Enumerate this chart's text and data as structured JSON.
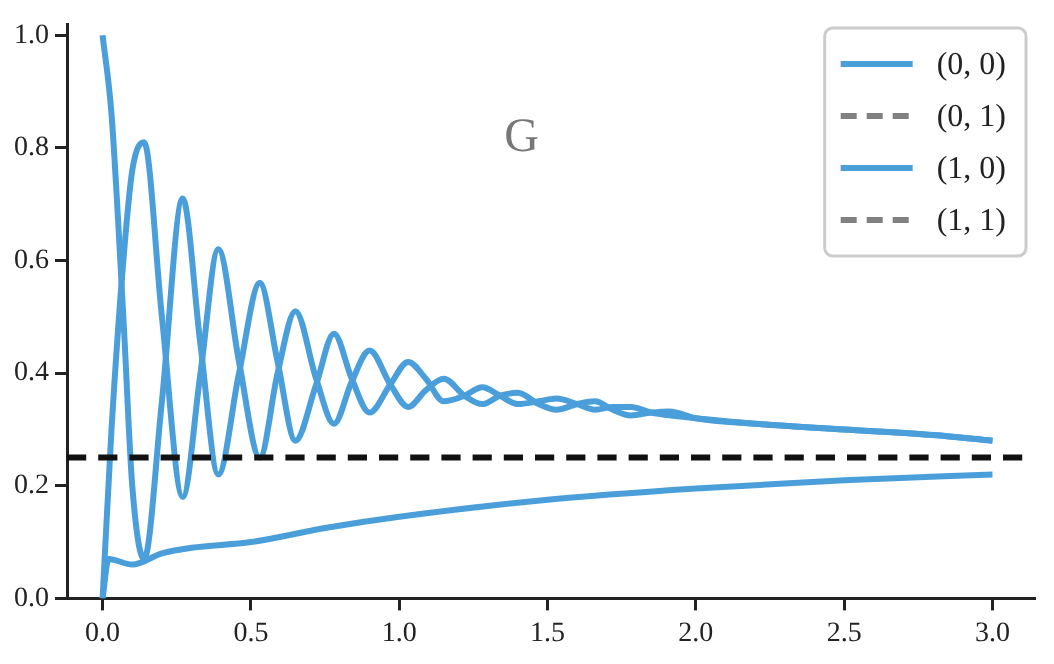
{
  "chart_data": {
    "type": "line",
    "annotations": [
      "G"
    ],
    "xlim": [
      -0.12,
      3.14
    ],
    "ylim": [
      0,
      1.02
    ],
    "xticks": [
      {
        "value": 0,
        "label": "0.0"
      },
      {
        "value": 0.5,
        "label": "0.5"
      },
      {
        "value": 1,
        "label": "1.0"
      },
      {
        "value": 1.5,
        "label": "1.5"
      },
      {
        "value": 2,
        "label": "2.0"
      },
      {
        "value": 2.5,
        "label": "2.5"
      },
      {
        "value": 3,
        "label": "3.0"
      }
    ],
    "yticks": [
      {
        "value": 0,
        "label": "0.0"
      },
      {
        "value": 0.2,
        "label": "0.2"
      },
      {
        "value": 0.4,
        "label": "0.4"
      },
      {
        "value": 0.6,
        "label": "0.6"
      },
      {
        "value": 0.8,
        "label": "0.8"
      },
      {
        "value": 1,
        "label": "1.0"
      }
    ],
    "grid": false,
    "legend": "top right",
    "marker": "none",
    "ref_lines": [
      {
        "axis": "y",
        "value": 0.25,
        "color": "#111111",
        "line_style": "dashed"
      }
    ],
    "series": [
      {
        "name": "(0, 0)",
        "color": "#4a9fdb",
        "line_style": "solid",
        "x": [
          0,
          0.03,
          0.07,
          0.1,
          0.14,
          0.2,
          0.27,
          0.33,
          0.39,
          0.46,
          0.53,
          0.59,
          0.65,
          0.72,
          0.78,
          0.84,
          0.9,
          0.97,
          1.03,
          1.09,
          1.15,
          1.22,
          1.28,
          1.34,
          1.4,
          1.47,
          1.53,
          1.6,
          1.66,
          1.72,
          1.78,
          1.85,
          1.91,
          2.0,
          2.2,
          2.5,
          2.8,
          3.0
        ],
        "values": [
          0.0,
          0.3,
          0.6,
          0.76,
          0.81,
          0.5,
          0.18,
          0.4,
          0.62,
          0.42,
          0.25,
          0.4,
          0.51,
          0.39,
          0.31,
          0.385,
          0.44,
          0.38,
          0.34,
          0.37,
          0.39,
          0.36,
          0.345,
          0.36,
          0.365,
          0.345,
          0.335,
          0.345,
          0.35,
          0.335,
          0.325,
          0.33,
          0.332,
          0.32,
          0.31,
          0.3,
          0.29,
          0.28
        ]
      },
      {
        "name": "(0, 1)",
        "color": "#808080",
        "line_style": "dashed"
      },
      {
        "name": "(1, 0)",
        "color": "#4a9fdb",
        "line_style": "solid",
        "x": [
          0,
          0.03,
          0.07,
          0.1,
          0.14,
          0.2,
          0.27,
          0.33,
          0.39,
          0.46,
          0.53,
          0.59,
          0.65,
          0.72,
          0.78,
          0.84,
          0.9,
          0.97,
          1.03,
          1.09,
          1.15,
          1.22,
          1.28,
          1.34,
          1.4,
          1.47,
          1.53,
          1.6,
          1.66,
          1.72,
          1.78,
          1.85,
          1.91,
          2.0,
          2.2,
          2.5,
          2.8,
          3.0
        ],
        "values": [
          1.0,
          0.86,
          0.5,
          0.2,
          0.07,
          0.35,
          0.71,
          0.45,
          0.22,
          0.4,
          0.56,
          0.42,
          0.28,
          0.38,
          0.47,
          0.39,
          0.33,
          0.38,
          0.42,
          0.39,
          0.35,
          0.36,
          0.375,
          0.36,
          0.345,
          0.35,
          0.355,
          0.345,
          0.335,
          0.34,
          0.34,
          0.33,
          0.325,
          0.32,
          0.31,
          0.3,
          0.29,
          0.28
        ]
      },
      {
        "name": "(1, 1)",
        "color": "#808080",
        "line_style": "dashed"
      },
      {
        "color": "#4a9fdb",
        "line_style": "solid",
        "x": [
          0,
          0.02,
          0.1,
          0.2,
          0.3,
          0.5,
          0.75,
          1.0,
          1.5,
          2.0,
          2.5,
          3.0
        ],
        "values": [
          0.0,
          0.07,
          0.06,
          0.08,
          0.09,
          0.1,
          0.125,
          0.145,
          0.175,
          0.195,
          0.21,
          0.22
        ]
      }
    ]
  }
}
